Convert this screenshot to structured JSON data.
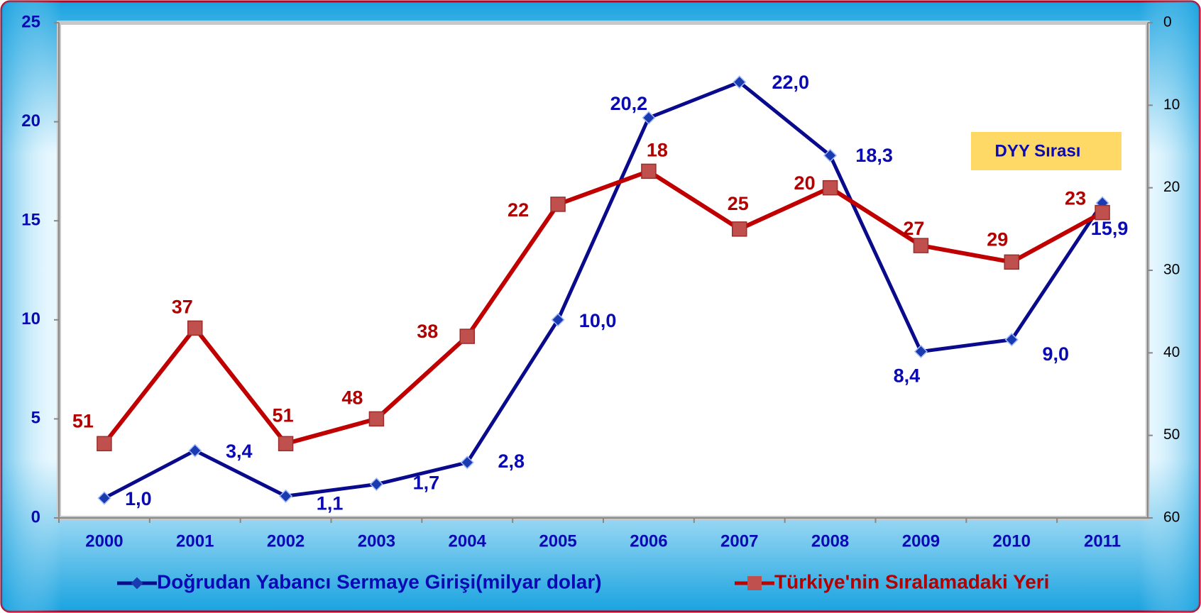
{
  "chart_data": {
    "type": "line",
    "categories": [
      "2000",
      "2001",
      "2002",
      "2003",
      "2004",
      "2005",
      "2006",
      "2007",
      "2008",
      "2009",
      "2010",
      "2011"
    ],
    "series": [
      {
        "name": "Doğrudan Yabancı Sermaye Girişi(milyar dolar)",
        "color": "#0a0a8c",
        "values": [
          1.0,
          3.4,
          1.1,
          1.7,
          2.8,
          10.0,
          20.2,
          22.0,
          18.3,
          8.4,
          9.0,
          15.9
        ],
        "value_labels": [
          "1,0",
          "3,4",
          "1,1",
          "1,7",
          "2,8",
          "10,0",
          "20,2",
          "22,0",
          "18,3",
          "8,4",
          "9,0",
          "15,9"
        ]
      },
      {
        "name": "Türkiye'nin Sıralamadaki Yeri",
        "color": "#c00000",
        "axis": "y2",
        "values": [
          51,
          37,
          51,
          48,
          38,
          22,
          18,
          25,
          20,
          27,
          29,
          23
        ]
      }
    ],
    "ylim": [
      0,
      25
    ],
    "yticks": [
      0,
      5,
      10,
      15,
      20,
      25
    ],
    "y2lim": [
      60,
      0
    ],
    "y2ticks": [
      0,
      10,
      20,
      30,
      40,
      50,
      60
    ],
    "annotation": "DYY Sırası",
    "legend": "bottom"
  }
}
